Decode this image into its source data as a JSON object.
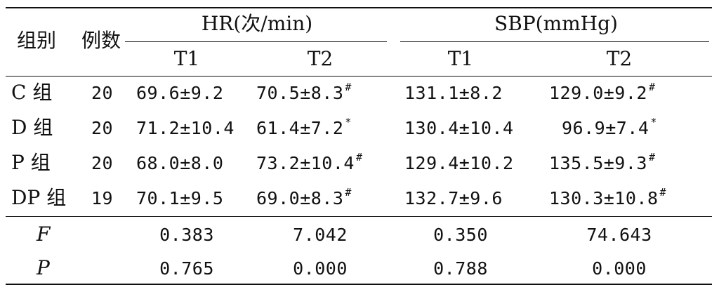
{
  "header": {
    "group_label": "组别",
    "count_label": "例数",
    "hr_label": "HR(次/min)",
    "sbp_label": "SBP(mmHg)",
    "hr_t1": "T1",
    "hr_t2": "T2",
    "sbp_t1": "T1",
    "sbp_t2": "T2"
  },
  "rows": [
    {
      "group": "C 组",
      "n": "20",
      "hr_t1": "69.6±9.2",
      "hr_t1_mark": "",
      "hr_t2": "70.5±8.3",
      "hr_t2_mark": "#",
      "sbp_t1": "131.1±8.2",
      "sbp_t1_mark": "",
      "sbp_t2": "129.0±9.2",
      "sbp_t2_mark": "#"
    },
    {
      "group": "D 组",
      "n": "20",
      "hr_t1": "71.2±10.4",
      "hr_t1_mark": "",
      "hr_t2": "61.4±7.2",
      "hr_t2_mark": "*",
      "sbp_t1": "130.4±10.4",
      "sbp_t1_mark": "",
      "sbp_t2": "96.9±7.4",
      "sbp_t2_mark": "*"
    },
    {
      "group": "P 组",
      "n": "20",
      "hr_t1": "68.0±8.0",
      "hr_t1_mark": "",
      "hr_t2": "73.2±10.4",
      "hr_t2_mark": "#",
      "sbp_t1": "129.4±10.2",
      "sbp_t1_mark": "",
      "sbp_t2": "135.5±9.3",
      "sbp_t2_mark": "#"
    },
    {
      "group": "DP 组",
      "n": "19",
      "hr_t1": "70.1±9.5",
      "hr_t1_mark": "",
      "hr_t2": "69.0±8.3",
      "hr_t2_mark": "#",
      "sbp_t1": "132.7±9.6",
      "sbp_t1_mark": "",
      "sbp_t2": "130.3±10.8",
      "sbp_t2_mark": "#"
    }
  ],
  "stats": [
    {
      "label": "F",
      "hr_t1": "0.383",
      "hr_t2": "7.042",
      "sbp_t1": "0.350",
      "sbp_t2": "74.643"
    },
    {
      "label": "P",
      "hr_t1": "0.765",
      "hr_t2": "0.000",
      "sbp_t1": "0.788",
      "sbp_t2": "0.000"
    }
  ]
}
